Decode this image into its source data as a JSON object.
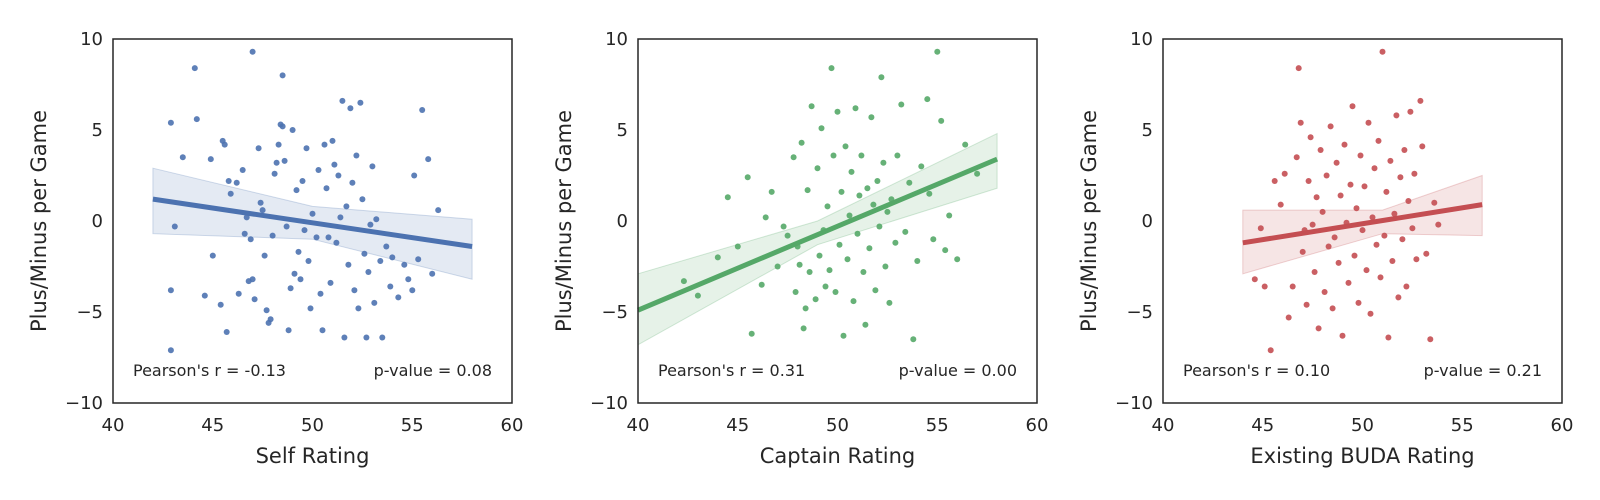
{
  "chart_data": [
    {
      "type": "scatter",
      "xlabel": "Self Rating",
      "ylabel": "Plus/Minus per Game",
      "xlim": [
        40,
        60
      ],
      "ylim": [
        -10,
        10
      ],
      "xticks": [
        "40",
        "45",
        "50",
        "55",
        "60"
      ],
      "yticks": [
        "−10",
        "−5",
        "0",
        "5",
        "10"
      ],
      "color": "#4c72b0",
      "annotation_left": "Pearson's r = -0.13",
      "annotation_right": "p-value = 0.08",
      "regression": {
        "x": [
          42,
          58
        ],
        "y": [
          1.2,
          -1.4
        ]
      },
      "ci_band": {
        "x": [
          42,
          50,
          58
        ],
        "upper": [
          2.9,
          0.8,
          0.1
        ],
        "lower": [
          -0.7,
          -1.0,
          -3.2
        ]
      },
      "points": [
        [
          42.9,
          5.4
        ],
        [
          42.9,
          -3.8
        ],
        [
          42.9,
          -7.1
        ],
        [
          43.1,
          -0.3
        ],
        [
          43.5,
          3.5
        ],
        [
          44.1,
          8.4
        ],
        [
          44.2,
          5.6
        ],
        [
          44.6,
          -4.1
        ],
        [
          44.9,
          3.4
        ],
        [
          45.0,
          -1.9
        ],
        [
          45.4,
          -4.6
        ],
        [
          45.5,
          4.4
        ],
        [
          45.6,
          4.2
        ],
        [
          45.7,
          -6.1
        ],
        [
          45.8,
          2.2
        ],
        [
          45.9,
          1.5
        ],
        [
          46.2,
          2.1
        ],
        [
          46.3,
          -4.0
        ],
        [
          46.5,
          2.8
        ],
        [
          46.6,
          -0.7
        ],
        [
          46.7,
          0.2
        ],
        [
          46.8,
          -3.3
        ],
        [
          46.9,
          -1.0
        ],
        [
          47.0,
          9.3
        ],
        [
          47.0,
          -3.2
        ],
        [
          47.1,
          -4.3
        ],
        [
          47.3,
          4.0
        ],
        [
          47.4,
          1.0
        ],
        [
          47.5,
          0.6
        ],
        [
          47.6,
          -1.9
        ],
        [
          47.7,
          -4.9
        ],
        [
          47.8,
          -5.6
        ],
        [
          47.9,
          -5.4
        ],
        [
          48.0,
          -0.8
        ],
        [
          48.1,
          2.6
        ],
        [
          48.2,
          3.2
        ],
        [
          48.3,
          4.2
        ],
        [
          48.4,
          5.3
        ],
        [
          48.5,
          5.2
        ],
        [
          48.5,
          8.0
        ],
        [
          48.6,
          3.3
        ],
        [
          48.7,
          -0.3
        ],
        [
          48.8,
          -6.0
        ],
        [
          48.9,
          -3.7
        ],
        [
          49.0,
          5.0
        ],
        [
          49.1,
          -2.9
        ],
        [
          49.2,
          1.7
        ],
        [
          49.3,
          -1.7
        ],
        [
          49.4,
          -3.2
        ],
        [
          49.5,
          2.2
        ],
        [
          49.6,
          -0.5
        ],
        [
          49.7,
          4.0
        ],
        [
          49.8,
          -2.2
        ],
        [
          49.9,
          -4.8
        ],
        [
          50.0,
          0.4
        ],
        [
          50.2,
          -0.9
        ],
        [
          50.3,
          2.8
        ],
        [
          50.4,
          -4.0
        ],
        [
          50.5,
          -6.0
        ],
        [
          50.6,
          4.2
        ],
        [
          50.7,
          1.8
        ],
        [
          50.8,
          -0.9
        ],
        [
          50.9,
          -3.4
        ],
        [
          51.0,
          4.4
        ],
        [
          51.1,
          3.1
        ],
        [
          51.2,
          -1.2
        ],
        [
          51.3,
          2.5
        ],
        [
          51.4,
          0.2
        ],
        [
          51.5,
          6.6
        ],
        [
          51.6,
          -6.4
        ],
        [
          51.7,
          0.8
        ],
        [
          51.8,
          -2.4
        ],
        [
          51.9,
          6.2
        ],
        [
          52.0,
          2.1
        ],
        [
          52.1,
          -3.8
        ],
        [
          52.2,
          3.6
        ],
        [
          52.3,
          -4.8
        ],
        [
          52.4,
          6.5
        ],
        [
          52.5,
          1.2
        ],
        [
          52.6,
          -1.8
        ],
        [
          52.7,
          -6.4
        ],
        [
          52.8,
          -2.8
        ],
        [
          52.9,
          -0.2
        ],
        [
          53.0,
          3.0
        ],
        [
          53.1,
          -4.5
        ],
        [
          53.2,
          0.1
        ],
        [
          53.4,
          -2.2
        ],
        [
          53.5,
          -6.4
        ],
        [
          53.7,
          -1.4
        ],
        [
          53.9,
          -3.6
        ],
        [
          54.0,
          -2.0
        ],
        [
          54.3,
          -4.2
        ],
        [
          54.6,
          -2.4
        ],
        [
          54.8,
          -3.2
        ],
        [
          55.0,
          -3.8
        ],
        [
          55.1,
          2.5
        ],
        [
          55.3,
          -2.1
        ],
        [
          55.5,
          6.1
        ],
        [
          55.8,
          3.4
        ],
        [
          56.0,
          -2.9
        ],
        [
          56.3,
          0.6
        ]
      ]
    },
    {
      "type": "scatter",
      "xlabel": "Captain Rating",
      "ylabel": "Plus/Minus per Game",
      "xlim": [
        40,
        60
      ],
      "ylim": [
        -10,
        10
      ],
      "xticks": [
        "40",
        "45",
        "50",
        "55",
        "60"
      ],
      "yticks": [
        "−10",
        "−5",
        "0",
        "5",
        "10"
      ],
      "color": "#55a868",
      "annotation_left": "Pearson's r = 0.31",
      "annotation_right": "p-value = 0.00",
      "regression": {
        "x": [
          40,
          58
        ],
        "y": [
          -4.9,
          3.4
        ]
      },
      "ci_band": {
        "x": [
          40,
          49,
          58
        ],
        "upper": [
          -2.9,
          0.0,
          4.8
        ],
        "lower": [
          -6.8,
          -1.3,
          1.8
        ]
      },
      "points": [
        [
          42.3,
          -3.3
        ],
        [
          43.0,
          -4.1
        ],
        [
          44.0,
          -2.0
        ],
        [
          44.5,
          1.3
        ],
        [
          45.0,
          -1.4
        ],
        [
          45.5,
          2.4
        ],
        [
          45.7,
          -6.2
        ],
        [
          46.2,
          -3.5
        ],
        [
          46.4,
          0.2
        ],
        [
          46.7,
          1.6
        ],
        [
          47.0,
          -2.5
        ],
        [
          47.3,
          -0.3
        ],
        [
          47.5,
          -0.8
        ],
        [
          47.8,
          3.5
        ],
        [
          47.9,
          -3.9
        ],
        [
          48.0,
          -1.4
        ],
        [
          48.1,
          -2.4
        ],
        [
          48.2,
          4.3
        ],
        [
          48.3,
          -5.9
        ],
        [
          48.4,
          -4.8
        ],
        [
          48.5,
          1.7
        ],
        [
          48.6,
          -2.8
        ],
        [
          48.7,
          6.3
        ],
        [
          48.9,
          -4.3
        ],
        [
          49.0,
          2.9
        ],
        [
          49.1,
          -1.9
        ],
        [
          49.2,
          5.1
        ],
        [
          49.3,
          -0.5
        ],
        [
          49.4,
          -3.6
        ],
        [
          49.5,
          0.8
        ],
        [
          49.6,
          -2.7
        ],
        [
          49.7,
          8.4
        ],
        [
          49.8,
          3.6
        ],
        [
          49.9,
          -3.9
        ],
        [
          50.0,
          6.0
        ],
        [
          50.1,
          -1.3
        ],
        [
          50.2,
          1.6
        ],
        [
          50.3,
          -6.3
        ],
        [
          50.4,
          4.1
        ],
        [
          50.5,
          -2.1
        ],
        [
          50.6,
          0.3
        ],
        [
          50.7,
          2.7
        ],
        [
          50.8,
          -4.4
        ],
        [
          50.9,
          6.2
        ],
        [
          51.0,
          -0.7
        ],
        [
          51.1,
          1.4
        ],
        [
          51.2,
          3.6
        ],
        [
          51.3,
          -2.8
        ],
        [
          51.4,
          -5.7
        ],
        [
          51.5,
          1.8
        ],
        [
          51.6,
          -1.5
        ],
        [
          51.7,
          5.7
        ],
        [
          51.8,
          0.9
        ],
        [
          51.9,
          -3.8
        ],
        [
          52.0,
          2.2
        ],
        [
          52.1,
          -0.3
        ],
        [
          52.2,
          7.9
        ],
        [
          52.3,
          3.2
        ],
        [
          52.4,
          -2.5
        ],
        [
          52.5,
          0.5
        ],
        [
          52.6,
          -4.5
        ],
        [
          52.7,
          1.2
        ],
        [
          52.9,
          -1.2
        ],
        [
          53.0,
          3.6
        ],
        [
          53.2,
          6.4
        ],
        [
          53.4,
          -0.6
        ],
        [
          53.6,
          2.1
        ],
        [
          53.8,
          -6.5
        ],
        [
          54.0,
          -2.2
        ],
        [
          54.2,
          3.0
        ],
        [
          54.5,
          6.7
        ],
        [
          54.6,
          1.5
        ],
        [
          54.8,
          -1.0
        ],
        [
          55.0,
          9.3
        ],
        [
          55.2,
          5.5
        ],
        [
          55.4,
          -1.6
        ],
        [
          55.6,
          0.3
        ],
        [
          56.0,
          -2.1
        ],
        [
          56.4,
          4.2
        ],
        [
          57.0,
          2.6
        ]
      ]
    },
    {
      "type": "scatter",
      "xlabel": "Existing BUDA Rating",
      "ylabel": "Plus/Minus per Game",
      "xlim": [
        40,
        60
      ],
      "ylim": [
        -10,
        10
      ],
      "xticks": [
        "40",
        "45",
        "50",
        "55",
        "60"
      ],
      "yticks": [
        "−10",
        "−5",
        "0",
        "5",
        "10"
      ],
      "color": "#c44e52",
      "annotation_left": "Pearson's r = 0.10",
      "annotation_right": "p-value = 0.21",
      "regression": {
        "x": [
          44,
          56
        ],
        "y": [
          -1.2,
          0.9
        ]
      },
      "ci_band": {
        "x": [
          44,
          51,
          56
        ],
        "upper": [
          0.6,
          0.6,
          2.5
        ],
        "lower": [
          -2.9,
          -0.7,
          -0.8
        ]
      },
      "points": [
        [
          44.6,
          -3.2
        ],
        [
          44.9,
          -0.4
        ],
        [
          45.1,
          -3.6
        ],
        [
          45.4,
          -7.1
        ],
        [
          45.6,
          2.2
        ],
        [
          45.9,
          0.9
        ],
        [
          46.1,
          2.6
        ],
        [
          46.3,
          -5.3
        ],
        [
          46.5,
          -3.6
        ],
        [
          46.7,
          3.5
        ],
        [
          46.8,
          8.4
        ],
        [
          46.9,
          5.4
        ],
        [
          47.0,
          -1.7
        ],
        [
          47.1,
          -0.5
        ],
        [
          47.2,
          -4.6
        ],
        [
          47.3,
          2.2
        ],
        [
          47.4,
          4.6
        ],
        [
          47.5,
          -0.2
        ],
        [
          47.6,
          -2.8
        ],
        [
          47.7,
          1.3
        ],
        [
          47.8,
          -5.9
        ],
        [
          47.9,
          3.9
        ],
        [
          48.0,
          0.5
        ],
        [
          48.1,
          -3.9
        ],
        [
          48.2,
          2.5
        ],
        [
          48.3,
          -1.4
        ],
        [
          48.4,
          5.2
        ],
        [
          48.5,
          -4.8
        ],
        [
          48.6,
          -0.9
        ],
        [
          48.7,
          3.2
        ],
        [
          48.8,
          -2.3
        ],
        [
          48.9,
          1.4
        ],
        [
          49.0,
          -6.3
        ],
        [
          49.1,
          4.2
        ],
        [
          49.2,
          -0.1
        ],
        [
          49.3,
          -3.4
        ],
        [
          49.4,
          2.0
        ],
        [
          49.5,
          6.3
        ],
        [
          49.6,
          -1.9
        ],
        [
          49.7,
          0.7
        ],
        [
          49.8,
          -4.5
        ],
        [
          49.9,
          3.6
        ],
        [
          50.0,
          -0.5
        ],
        [
          50.1,
          1.9
        ],
        [
          50.2,
          -2.7
        ],
        [
          50.3,
          5.4
        ],
        [
          50.4,
          -5.1
        ],
        [
          50.5,
          0.2
        ],
        [
          50.6,
          2.9
        ],
        [
          50.7,
          -1.3
        ],
        [
          50.8,
          4.4
        ],
        [
          50.9,
          -3.1
        ],
        [
          51.0,
          9.3
        ],
        [
          51.1,
          -0.8
        ],
        [
          51.2,
          1.6
        ],
        [
          51.3,
          -6.4
        ],
        [
          51.4,
          3.3
        ],
        [
          51.5,
          -2.2
        ],
        [
          51.6,
          0.4
        ],
        [
          51.7,
          5.8
        ],
        [
          51.8,
          -4.2
        ],
        [
          51.9,
          2.4
        ],
        [
          52.0,
          -1.0
        ],
        [
          52.1,
          3.9
        ],
        [
          52.2,
          -3.6
        ],
        [
          52.3,
          1.1
        ],
        [
          52.4,
          6.0
        ],
        [
          52.5,
          -0.4
        ],
        [
          52.6,
          2.6
        ],
        [
          52.7,
          -2.1
        ],
        [
          52.9,
          6.6
        ],
        [
          53.0,
          4.1
        ],
        [
          53.2,
          -1.8
        ],
        [
          53.4,
          -6.5
        ],
        [
          53.6,
          1.0
        ],
        [
          53.8,
          -0.2
        ]
      ]
    }
  ]
}
